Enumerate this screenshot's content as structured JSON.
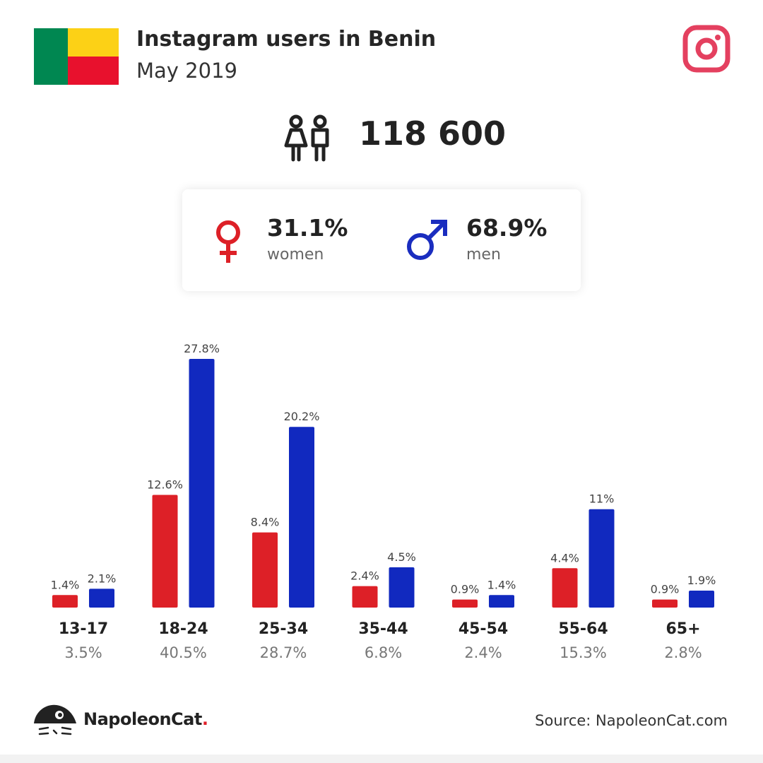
{
  "header": {
    "title": "Instagram users in Benin",
    "subtitle": "May 2019",
    "flag_colors": {
      "green": "#008751",
      "yellow": "#FCD116",
      "red": "#E8112D"
    },
    "brand_icon": "instagram-icon"
  },
  "summary": {
    "total_users": "118 600",
    "icon": "users-icon"
  },
  "gender": {
    "women": {
      "pct": "31.1%",
      "label": "women",
      "color": "#dd2027",
      "icon": "female-symbol-icon"
    },
    "men": {
      "pct": "68.9%",
      "label": "men",
      "color": "#1a2dbf",
      "icon": "male-symbol-icon"
    }
  },
  "chart_data": {
    "type": "bar",
    "categories": [
      "13-17",
      "18-24",
      "25-34",
      "35-44",
      "45-54",
      "55-64",
      "65+"
    ],
    "category_totals": [
      "3.5%",
      "40.5%",
      "28.7%",
      "6.8%",
      "2.4%",
      "15.3%",
      "2.8%"
    ],
    "series": [
      {
        "values": [
          1.4,
          12.6,
          8.4,
          2.4,
          0.9,
          4.4,
          0.9
        ],
        "labels": [
          "1.4%",
          "12.6%",
          "8.4%",
          "2.4%",
          "0.9%",
          "4.4%",
          "0.9%"
        ],
        "color": "#dd2027"
      },
      {
        "values": [
          2.1,
          27.8,
          20.2,
          4.5,
          1.4,
          11,
          1.9
        ],
        "labels": [
          "2.1%",
          "27.8%",
          "20.2%",
          "4.5%",
          "1.4%",
          "11%",
          "1.9%"
        ],
        "color": "#1129bf"
      }
    ],
    "ylim": [
      0,
      27.8
    ],
    "grid": false
  },
  "footer": {
    "brand": "NapoleonCat",
    "brand_dot": ".",
    "source": "Source: NapoleonCat.com"
  }
}
